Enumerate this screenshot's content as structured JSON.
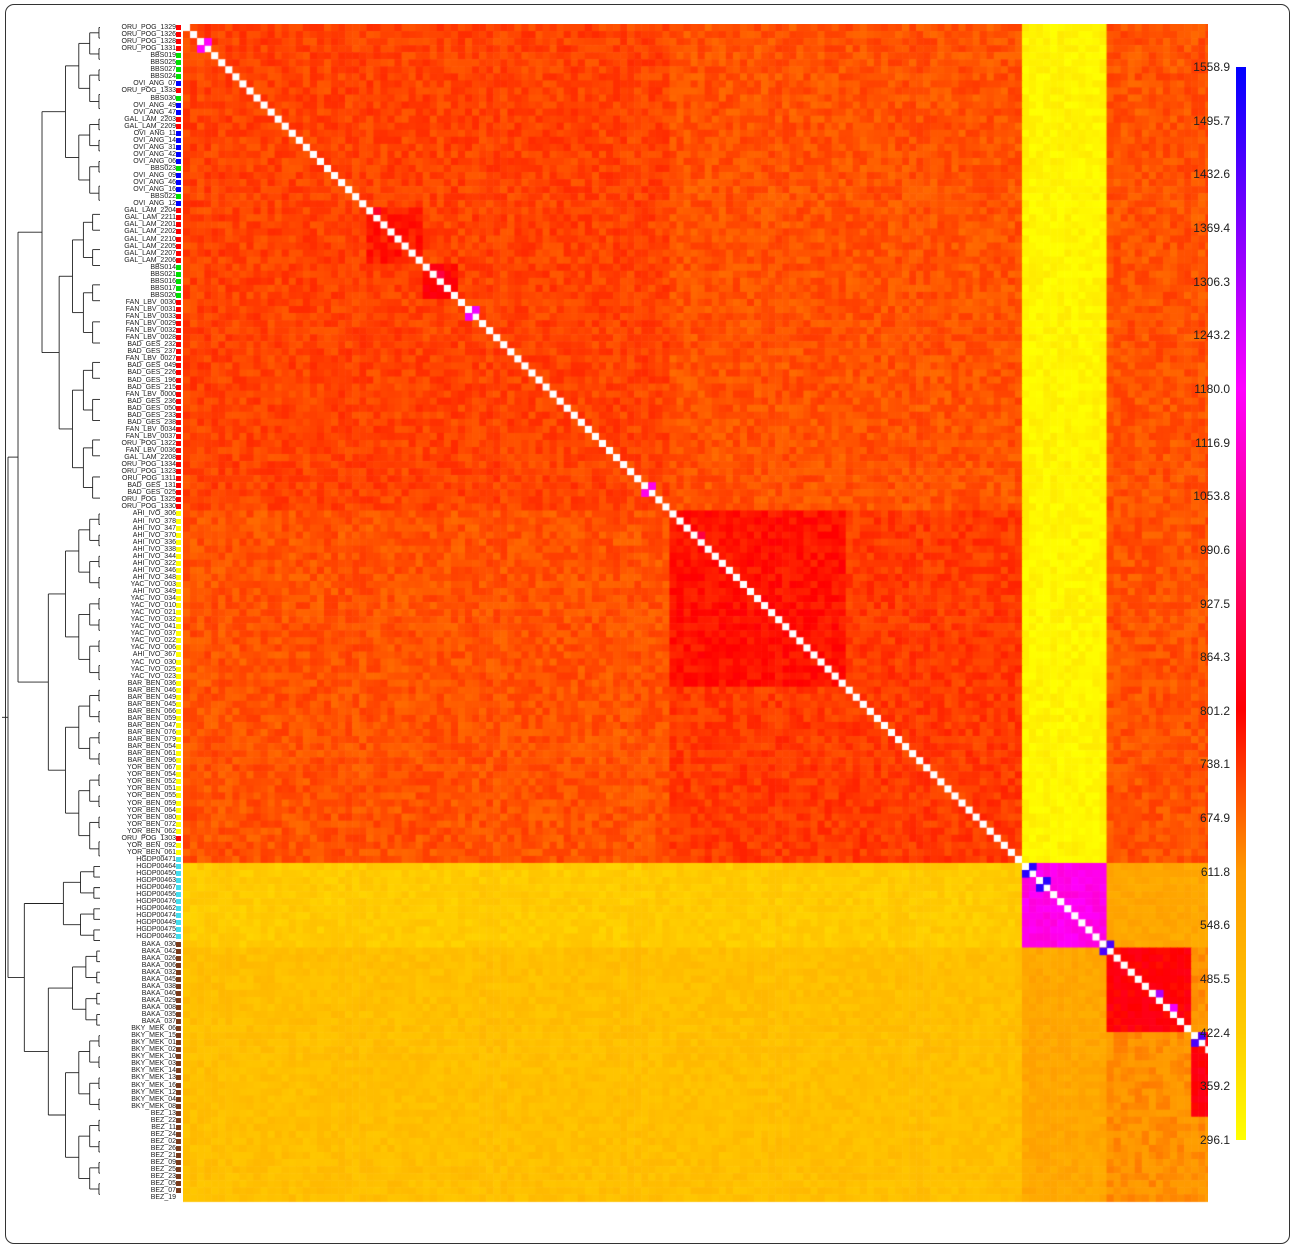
{
  "chart_data": {
    "type": "heatmap",
    "title": "",
    "xlabel": "",
    "ylabel": "",
    "colorscale": [
      "#ffff00",
      "#ffcc00",
      "#ff9900",
      "#ff0000",
      "#ff00ff",
      "#0000ff"
    ],
    "colorbar": {
      "min": 296.1,
      "max": 1558.9,
      "ticks": [
        "1558.9",
        "1495.7",
        "1432.6",
        "1369.4",
        "1306.3",
        "1243.2",
        "1180.0",
        "1116.9",
        "1053.8",
        "990.6",
        "927.5",
        "864.3",
        "801.2",
        "738.1",
        "674.9",
        "611.8",
        "548.6",
        "485.5",
        "422.4",
        "359.2",
        "296.1"
      ]
    },
    "row_labels": [
      "ORU_POG_1329",
      "ORU_POG_1326",
      "ORU_POG_1328",
      "ORU_POG_1331",
      "BBS019",
      "BBS025",
      "BBS027",
      "BBS024",
      "OVI_ANG_07",
      "ORU_POG_1333",
      "BBS030",
      "OVI_ANG_49",
      "OVI_ANG_47",
      "GAL_LAM_2203",
      "GAL_LAM_2209",
      "OVI_ANG_11",
      "OVI_ANG_14",
      "OVI_ANG_31",
      "OVI_ANG_42",
      "OVI_ANG_06",
      "BBS023",
      "OVI_ANG_09",
      "OVI_ANG_46",
      "OVI_ANG_16",
      "BBS022",
      "OVI_ANG_12",
      "GAL_LAM_2204",
      "GAL_LAM_2211",
      "GAL_LAM_2201",
      "GAL_LAM_2202",
      "GAL_LAM_2210",
      "GAL_LAM_2205",
      "GAL_LAM_2207",
      "GAL_LAM_2206",
      "BBS014",
      "BBS021",
      "BBS016",
      "BBS017",
      "BBS020",
      "FAN_LBV_0030",
      "FAN_LBV_0031",
      "FAN_LBV_0033",
      "FAN_LBV_0029",
      "FAN_LBV_0032",
      "FAN_LBV_0028",
      "BAD_GES_232",
      "BAD_GES_237",
      "FAN_LBV_0027",
      "BAD_GES_049",
      "BAD_GES_226",
      "BAD_GES_196",
      "BAD_GES_215",
      "FAN_LBV_0000",
      "BAD_GES_236",
      "BAD_GES_050",
      "BAD_GES_233",
      "BAD_GES_238",
      "FAN_LBV_0034",
      "FAN_LBV_0037",
      "ORU_POG_1322",
      "FAN_LBV_0036",
      "GAL_LAM_2208",
      "ORU_POG_1334",
      "ORU_POG_1323",
      "ORU_POG_1311",
      "BAD_GES_131",
      "BAD_GES_025",
      "ORU_POG_1325",
      "ORU_POG_1330",
      "AHI_IVO_306",
      "AHI_IVO_378",
      "AHI_IVO_347",
      "AHI_IVO_370",
      "AHI_IVO_336",
      "AHI_IVO_338",
      "AHI_IVO_344",
      "AHI_IVO_322",
      "AHI_IVO_346",
      "AHI_IVO_348",
      "YAC_IVO_003",
      "AHI_IVO_349",
      "YAC_IVO_034",
      "YAC_IVO_010",
      "YAC_IVO_021",
      "YAC_IVO_032",
      "YAC_IVO_041",
      "YAC_IVO_037",
      "YAC_IVO_022",
      "YAC_IVO_006",
      "AHI_IVO_367",
      "YAC_IVO_030",
      "YAC_IVO_025",
      "YAC_IVO_023",
      "BAR_BEN_036",
      "BAR_BEN_046",
      "BAR_BEN_049",
      "BAR_BEN_045",
      "BAR_BEN_066",
      "BAR_BEN_059",
      "BAR_BEN_047",
      "BAR_BEN_076",
      "BAR_BEN_079",
      "BAR_BEN_054",
      "BAR_BEN_061",
      "BAR_BEN_096",
      "YOR_BEN_067",
      "YOR_BEN_054",
      "YOR_BEN_052",
      "YOR_BEN_051",
      "YOR_BEN_055",
      "YOR_BEN_059",
      "YOR_BEN_064",
      "YOR_BEN_080",
      "YOR_BEN_072",
      "YOR_BEN_062",
      "ORU_POG_1303",
      "YOR_BEN_092",
      "YOR_BEN_061",
      "HGDP00471",
      "HGDP00464",
      "HGDP00450",
      "HGDP00463",
      "HGDP00467",
      "HGDP00456",
      "HGDP00476",
      "HGDP00462",
      "HGDP00474",
      "HGDP00449",
      "HGDP00475",
      "HGDP00462",
      "BAKA_030",
      "BAKA_042",
      "BAKA_026",
      "BAKA_006",
      "BAKA_032",
      "BAKA_045",
      "BAKA_038",
      "BAKA_040",
      "BAKA_029",
      "BAKA_008",
      "BAKA_035",
      "BAKA_037",
      "BKY_MEK_06",
      "BKY_MEK_15",
      "BKY_MEK_01",
      "BKY_MEK_02",
      "BKY_MEK_10",
      "BKY_MEK_03",
      "BKY_MEK_14",
      "BKY_MEK_13",
      "BKY_MEK_16",
      "BKY_MEK_12",
      "BKY_MEK_04",
      "BKY_MEK_08",
      "BEZ_13",
      "BEZ_22",
      "BEZ_11",
      "BEZ_24",
      "BEZ_02",
      "BEZ_26",
      "BEZ_21",
      "BEZ_09",
      "BEZ_25",
      "BEZ_23",
      "BEZ_05",
      "BEZ_07",
      "BEZ_19"
    ],
    "row_population_colors": [
      "#ff0000",
      "#ff0000",
      "#ff0000",
      "#ff0000",
      "#00e000",
      "#00e000",
      "#00e000",
      "#00e000",
      "#0000ff",
      "#ff0000",
      "#00e000",
      "#0000ff",
      "#0000ff",
      "#ff0000",
      "#ff0000",
      "#0000ff",
      "#0000ff",
      "#0000ff",
      "#0000ff",
      "#0000ff",
      "#00e000",
      "#0000ff",
      "#0000ff",
      "#0000ff",
      "#00e000",
      "#0000ff",
      "#ff0000",
      "#ff0000",
      "#ff0000",
      "#ff0000",
      "#ff0000",
      "#ff0000",
      "#ff0000",
      "#ff0000",
      "#00e000",
      "#00e000",
      "#00e000",
      "#00e000",
      "#00e000",
      "#ff0000",
      "#ff0000",
      "#ff0000",
      "#ff0000",
      "#ff0000",
      "#ff0000",
      "#ff0000",
      "#ff0000",
      "#ff0000",
      "#ff0000",
      "#ff0000",
      "#ff0000",
      "#ff0000",
      "#ff0000",
      "#ff0000",
      "#ff0000",
      "#ff0000",
      "#ff0000",
      "#ff0000",
      "#ff0000",
      "#ff0000",
      "#ff0000",
      "#ff0000",
      "#ff0000",
      "#ff0000",
      "#ff0000",
      "#ff0000",
      "#ff0000",
      "#ff0000",
      "#ff0000",
      "#ffff00",
      "#ffff00",
      "#ffff00",
      "#ffff00",
      "#ffff00",
      "#ffff00",
      "#ffff00",
      "#ffff00",
      "#ffff00",
      "#ffff00",
      "#ffff00",
      "#ffff00",
      "#ffff00",
      "#ffff00",
      "#ffff00",
      "#ffff00",
      "#ffff00",
      "#ffff00",
      "#ffff00",
      "#ffff00",
      "#ffff00",
      "#ffff00",
      "#ffff00",
      "#ffff00",
      "#ffff00",
      "#ffff00",
      "#ffff00",
      "#ffff00",
      "#ffff00",
      "#ffff00",
      "#ffff00",
      "#ffff00",
      "#ffff00",
      "#ffff00",
      "#ffff00",
      "#ffff00",
      "#ffff00",
      "#ffff00",
      "#ffff00",
      "#ffff00",
      "#ffff00",
      "#ffff00",
      "#ffff00",
      "#ffff00",
      "#ffff00",
      "#ffff00",
      "#ff0000",
      "#ffff00",
      "#ffff00",
      "#44ddee",
      "#44ddee",
      "#44ddee",
      "#44ddee",
      "#44ddee",
      "#44ddee",
      "#44ddee",
      "#44ddee",
      "#44ddee",
      "#44ddee",
      "#44ddee",
      "#44ddee",
      "#7a3b1a",
      "#7a3b1a",
      "#7a3b1a",
      "#7a3b1a",
      "#7a3b1a",
      "#7a3b1a",
      "#7a3b1a",
      "#7a3b1a",
      "#7a3b1a",
      "#7a3b1a",
      "#7a3b1a",
      "#7a3b1a",
      "#7a3b1a",
      "#7a3b1a",
      "#7a3b1a",
      "#7a3b1a",
      "#7a3b1a",
      "#7a3b1a",
      "#7a3b1a",
      "#7a3b1a",
      "#7a3b1a",
      "#7a3b1a",
      "#7a3b1a",
      "#7a3b1a",
      "#7a3b1a",
      "#7a3b1a",
      "#7a3b1a",
      "#7a3b1a",
      "#7a3b1a",
      "#7a3b1a",
      "#7a3b1a",
      "#7a3b1a",
      "#7a3b1a",
      "#7a3b1a",
      "#7a3b1a",
      "#7a3b1a"
    ],
    "blocks": [
      {
        "rows": [
          0,
          69
        ],
        "cols": [
          0,
          69
        ],
        "value": 720
      },
      {
        "rows": [
          0,
          69
        ],
        "cols": [
          69,
          119
        ],
        "value": 700
      },
      {
        "rows": [
          69,
          119
        ],
        "cols": [
          0,
          69
        ],
        "value": 700
      },
      {
        "rows": [
          69,
          119
        ],
        "cols": [
          69,
          119
        ],
        "value": 730
      },
      {
        "rows": [
          69,
          94
        ],
        "cols": [
          69,
          94
        ],
        "value": 780
      },
      {
        "rows": [
          0,
          119
        ],
        "cols": [
          119,
          131
        ],
        "value": 320
      },
      {
        "rows": [
          119,
          131
        ],
        "cols": [
          0,
          119
        ],
        "value": 430
      },
      {
        "rows": [
          119,
          131
        ],
        "cols": [
          119,
          131
        ],
        "value": 1150
      },
      {
        "rows": [
          119,
          131
        ],
        "cols": [
          131,
          168
        ],
        "value": 560
      },
      {
        "rows": [
          131,
          168
        ],
        "cols": [
          0,
          119
        ],
        "value": 470
      },
      {
        "rows": [
          131,
          168
        ],
        "cols": [
          119,
          131
        ],
        "value": 560
      },
      {
        "rows": [
          131,
          168
        ],
        "cols": [
          131,
          168
        ],
        "value": 620
      },
      {
        "rows": [
          131,
          143
        ],
        "cols": [
          131,
          143
        ],
        "value": 810
      },
      {
        "rows": [
          143,
          155
        ],
        "cols": [
          143,
          155
        ],
        "value": 820
      },
      {
        "rows": [
          155,
          168
        ],
        "cols": [
          155,
          168
        ],
        "value": 830
      },
      {
        "rows": [
          26,
          34
        ],
        "cols": [
          26,
          34
        ],
        "value": 770
      },
      {
        "rows": [
          34,
          39
        ],
        "cols": [
          34,
          39
        ],
        "value": 800
      }
    ],
    "highlights": [
      {
        "row": 2,
        "col": 3,
        "value": 1180
      },
      {
        "row": 3,
        "col": 2,
        "value": 1180
      },
      {
        "row": 26,
        "col": 27,
        "value": 860
      },
      {
        "row": 35,
        "col": 36,
        "value": 900
      },
      {
        "row": 40,
        "col": 41,
        "value": 1200
      },
      {
        "row": 41,
        "col": 40,
        "value": 1200
      },
      {
        "row": 65,
        "col": 66,
        "value": 1150
      },
      {
        "row": 66,
        "col": 65,
        "value": 1150
      },
      {
        "row": 72,
        "col": 73,
        "value": 900
      },
      {
        "row": 119,
        "col": 120,
        "value": 1500
      },
      {
        "row": 120,
        "col": 119,
        "value": 1500
      },
      {
        "row": 121,
        "col": 122,
        "value": 1500
      },
      {
        "row": 122,
        "col": 121,
        "value": 1500
      },
      {
        "row": 130,
        "col": 131,
        "value": 1450
      },
      {
        "row": 131,
        "col": 130,
        "value": 1450
      },
      {
        "row": 137,
        "col": 138,
        "value": 1300
      },
      {
        "row": 139,
        "col": 140,
        "value": 1200
      },
      {
        "row": 143,
        "col": 144,
        "value": 1450
      },
      {
        "row": 144,
        "col": 143,
        "value": 1450
      },
      {
        "row": 154,
        "col": 155,
        "value": 1400
      },
      {
        "row": 156,
        "col": 157,
        "value": 1150
      },
      {
        "row": 157,
        "col": 156,
        "value": 1150
      }
    ]
  }
}
